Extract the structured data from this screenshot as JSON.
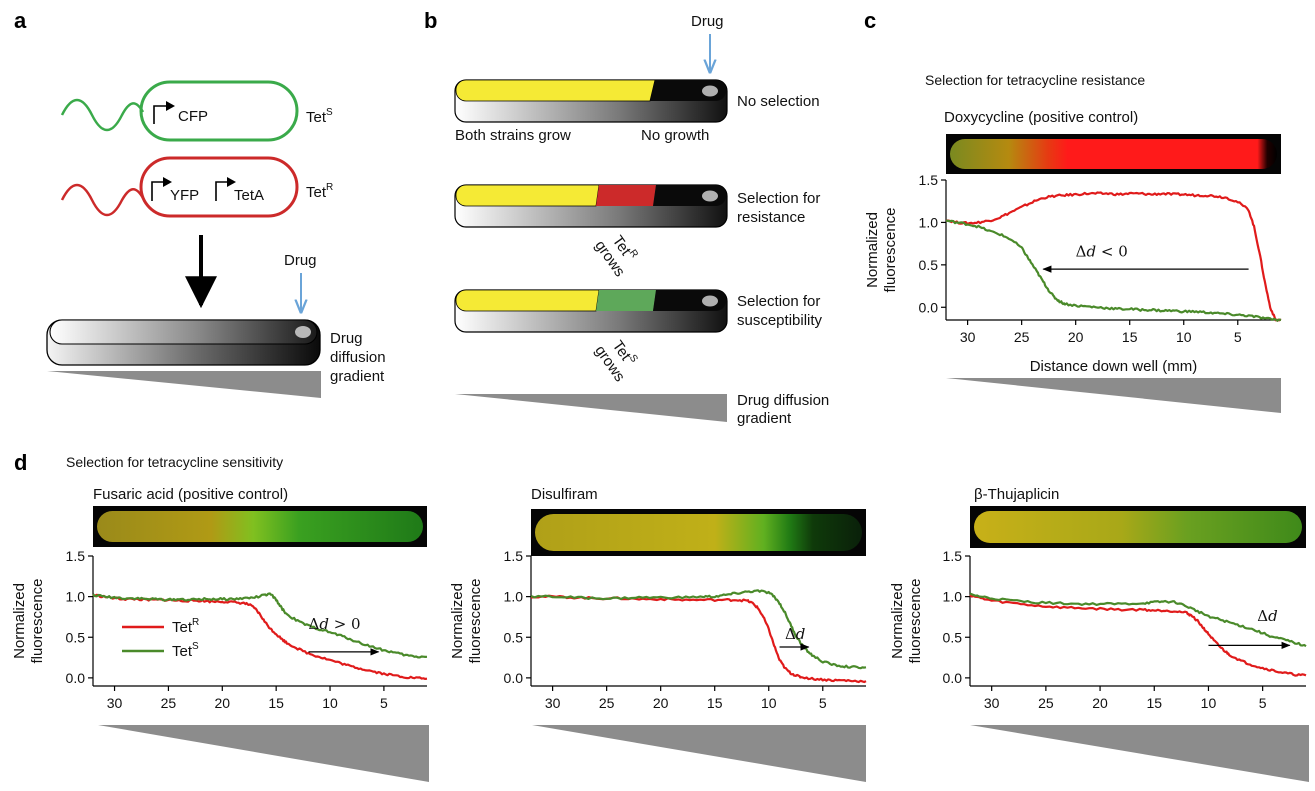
{
  "panel_labels": {
    "a": "a",
    "b": "b",
    "c": "c",
    "d": "d"
  },
  "colors": {
    "red": "#e01b1b",
    "green": "#4a8a2a",
    "yellow": "#f5ea35",
    "blue_drug_arrow": "#6aa4d8",
    "wedge": "#8c8c8c"
  },
  "panel_a": {
    "cfp_label": "CFP",
    "tets_label": "Tet",
    "tets_sup": "S",
    "yfp_label": "YFP",
    "teta_label": "TetA",
    "tetr_label": "Tet",
    "tetr_sup": "R",
    "drug_label": "Drug",
    "gradient_label_1": "Drug",
    "gradient_label_2": "diffusion",
    "gradient_label_3": "gradient"
  },
  "panel_b": {
    "drug_label": "Drug",
    "row1_label": "No selection",
    "both_grow": "Both strains grow",
    "no_growth": "No growth",
    "row2_label_1": "Selection for",
    "row2_label_2": "resistance",
    "row2_grows_1": "Tet",
    "row2_grows_sup": "R",
    "row2_grows_2": "grows",
    "row3_label_1": "Selection for",
    "row3_label_2": "susceptibility",
    "row3_grows_1": "Tet",
    "row3_grows_sup": "S",
    "row3_grows_2": "grows",
    "gradient_label_1": "Drug diffusion",
    "gradient_label_2": "gradient"
  },
  "panel_c": {
    "header": "Selection for tetracycline resistance",
    "title": "Doxycycline (positive control)"
  },
  "panel_d": {
    "header": "Selection for tetracycline sensitivity",
    "legend_tetr": "Tet",
    "legend_tetr_sup": "R",
    "legend_tets": "Tet",
    "legend_tets_sup": "S"
  },
  "chart_data": [
    {
      "id": "c",
      "type": "line",
      "title": "Doxycycline (positive control)",
      "xlabel": "Distance down well (mm)",
      "ylabel": "Normalized fluorescence",
      "xlim": [
        32,
        1
      ],
      "x_reversed": true,
      "ylim": [
        -0.15,
        1.5
      ],
      "xticks": [
        30,
        25,
        20,
        15,
        10,
        5
      ],
      "yticks": [
        0.0,
        0.5,
        1.0,
        1.5
      ],
      "ytick_labels": [
        "0.0",
        "0.5",
        "1.0",
        "1.5"
      ],
      "strip": [
        [
          0,
          "#7a8a20"
        ],
        [
          0.18,
          "#b58a10"
        ],
        [
          0.3,
          "#e63a12"
        ],
        [
          0.36,
          "#ff1a1a"
        ],
        [
          0.94,
          "#ff1a1a"
        ],
        [
          0.97,
          "#200000"
        ],
        [
          1,
          "#000000"
        ]
      ],
      "annotation": {
        "text_delta": "Δ",
        "text_d": "d",
        "text_rest": " < 0",
        "arrow_x_from": 4,
        "arrow_x_to": 23,
        "arrow_y": 0.45,
        "text_x": 20,
        "text_y": 0.6
      },
      "series": [
        {
          "name": "Tet R",
          "color": "#e01b1b",
          "x": [
            32,
            31,
            30,
            29,
            28,
            27,
            26,
            25,
            24,
            23,
            22,
            21,
            20,
            19,
            18,
            17,
            16,
            15,
            14,
            13,
            12,
            11,
            10,
            9,
            8,
            7,
            6,
            5,
            4,
            3.5,
            3,
            2.5,
            2,
            1.5,
            1
          ],
          "y": [
            1.03,
            1.0,
            0.99,
            1.0,
            1.02,
            1.06,
            1.12,
            1.18,
            1.24,
            1.29,
            1.31,
            1.32,
            1.33,
            1.34,
            1.34,
            1.34,
            1.33,
            1.34,
            1.34,
            1.33,
            1.34,
            1.33,
            1.33,
            1.32,
            1.32,
            1.31,
            1.29,
            1.24,
            1.15,
            0.95,
            0.65,
            0.3,
            0.0,
            -0.15,
            -0.15
          ]
        },
        {
          "name": "Tet S",
          "color": "#4a8a2a",
          "x": [
            32,
            31,
            30,
            29,
            28,
            27,
            26,
            25,
            24.5,
            24,
            23.5,
            23,
            22.5,
            22,
            21.5,
            21,
            20,
            19,
            18,
            17,
            16,
            15,
            14,
            13,
            12,
            11,
            10,
            9,
            8,
            7,
            6,
            5,
            4,
            3,
            2,
            1
          ],
          "y": [
            1.02,
            1.0,
            0.98,
            0.95,
            0.9,
            0.86,
            0.8,
            0.7,
            0.6,
            0.5,
            0.4,
            0.3,
            0.2,
            0.12,
            0.07,
            0.04,
            0.02,
            0.01,
            0.0,
            -0.01,
            -0.02,
            -0.02,
            -0.03,
            -0.03,
            -0.04,
            -0.04,
            -0.05,
            -0.05,
            -0.06,
            -0.07,
            -0.08,
            -0.09,
            -0.1,
            -0.12,
            -0.14,
            -0.15
          ]
        }
      ]
    },
    {
      "id": "d1",
      "type": "line",
      "title": "Fusaric acid (positive control)",
      "xlabel": "Distance down well (mm)",
      "ylabel": "Normalized fluorescence",
      "xlim": [
        32,
        1
      ],
      "x_reversed": true,
      "ylim": [
        -0.1,
        1.5
      ],
      "xticks": [
        30,
        25,
        20,
        15,
        10,
        5
      ],
      "yticks": [
        0.0,
        0.5,
        1.0,
        1.5
      ],
      "ytick_labels": [
        "0.0",
        "0.5",
        "1.0",
        "1.5"
      ],
      "strip": [
        [
          0,
          "#9a8a1a"
        ],
        [
          0.35,
          "#b09a15"
        ],
        [
          0.48,
          "#80c020"
        ],
        [
          0.62,
          "#3aa020"
        ],
        [
          1,
          "#1f7a18"
        ]
      ],
      "annotation": {
        "text_delta": "Δ",
        "text_d": "d",
        "text_rest": " > 0",
        "arrow_x_from": 12,
        "arrow_x_to": 5.5,
        "arrow_y": 0.32,
        "text_x": 12,
        "text_y": 0.6
      },
      "series": [
        {
          "name": "Tet R",
          "color": "#e01b1b",
          "x": [
            32,
            31,
            30,
            29,
            28,
            27,
            26,
            25,
            24,
            23,
            22,
            21,
            20,
            19,
            18,
            17.5,
            17,
            16.5,
            16,
            15.5,
            15,
            14.5,
            14,
            13,
            12,
            11,
            10,
            9,
            8,
            7,
            6,
            5,
            4,
            3,
            2,
            1
          ],
          "y": [
            1.02,
            1.0,
            0.98,
            0.97,
            0.97,
            0.96,
            0.96,
            0.96,
            0.95,
            0.95,
            0.95,
            0.94,
            0.94,
            0.93,
            0.92,
            0.9,
            0.86,
            0.78,
            0.68,
            0.6,
            0.54,
            0.48,
            0.43,
            0.36,
            0.3,
            0.26,
            0.22,
            0.18,
            0.14,
            0.11,
            0.08,
            0.05,
            0.03,
            0.01,
            0.0,
            -0.01
          ]
        },
        {
          "name": "Tet S",
          "color": "#4a8a2a",
          "x": [
            32,
            31,
            30,
            29,
            28,
            27,
            26,
            25,
            24,
            23,
            22,
            21,
            20,
            19,
            18,
            17,
            16,
            15.5,
            15,
            14.5,
            14,
            13,
            12,
            11,
            10,
            9,
            8,
            7,
            6,
            5,
            4,
            3,
            2,
            1
          ],
          "y": [
            1.02,
            1.0,
            0.99,
            0.98,
            0.98,
            0.97,
            0.97,
            0.96,
            0.97,
            0.96,
            0.97,
            0.97,
            0.97,
            0.97,
            0.98,
            0.99,
            1.02,
            1.03,
            0.96,
            0.86,
            0.78,
            0.7,
            0.64,
            0.6,
            0.56,
            0.52,
            0.47,
            0.42,
            0.38,
            0.34,
            0.31,
            0.28,
            0.26,
            0.26
          ]
        }
      ]
    },
    {
      "id": "d2",
      "type": "line",
      "title": "Disulfiram",
      "xlabel": "Distance down well (mm)",
      "ylabel": "Normalized fluorescence",
      "xlim": [
        32,
        1
      ],
      "x_reversed": true,
      "ylim": [
        -0.1,
        1.5
      ],
      "xticks": [
        30,
        25,
        20,
        15,
        10,
        5
      ],
      "yticks": [
        0.0,
        0.5,
        1.0,
        1.5
      ],
      "ytick_labels": [
        "0.0",
        "0.5",
        "1.0",
        "1.5"
      ],
      "strip": [
        [
          0,
          "#b0a018"
        ],
        [
          0.55,
          "#c0b018"
        ],
        [
          0.7,
          "#60b020"
        ],
        [
          0.78,
          "#207a14"
        ],
        [
          0.85,
          "#0f3a0a"
        ],
        [
          1,
          "#0a200a"
        ]
      ],
      "annotation": {
        "text_delta": "Δ",
        "text_d": "d",
        "text_rest": "",
        "arrow_x_from": 9,
        "arrow_x_to": 6.3,
        "arrow_y": 0.38,
        "text_x": 8.5,
        "text_y": 0.48
      },
      "series": [
        {
          "name": "Tet R",
          "color": "#e01b1b",
          "x": [
            32,
            30,
            28,
            26,
            24,
            22,
            20,
            18,
            16,
            14,
            13,
            12,
            11.5,
            11,
            10.5,
            10,
            9.5,
            9,
            8.5,
            8,
            7.5,
            7,
            6,
            5,
            4,
            3,
            2,
            1
          ],
          "y": [
            1.0,
            1.0,
            0.99,
            0.98,
            0.98,
            0.97,
            0.97,
            0.96,
            0.96,
            0.96,
            0.96,
            0.95,
            0.92,
            0.86,
            0.75,
            0.6,
            0.4,
            0.22,
            0.12,
            0.06,
            0.03,
            0.01,
            -0.01,
            -0.02,
            -0.03,
            -0.03,
            -0.04,
            -0.04
          ]
        },
        {
          "name": "Tet S",
          "color": "#4a8a2a",
          "x": [
            32,
            30,
            28,
            26,
            24,
            22,
            20,
            18,
            16,
            15,
            14,
            13,
            12,
            11,
            10,
            9.5,
            9,
            8.5,
            8,
            7.5,
            7,
            6.5,
            6,
            5,
            4,
            3,
            2,
            1
          ],
          "y": [
            1.0,
            1.0,
            0.99,
            0.98,
            0.98,
            0.99,
            0.99,
            0.99,
            1.0,
            1.0,
            1.02,
            1.04,
            1.06,
            1.07,
            1.05,
            1.0,
            0.92,
            0.8,
            0.66,
            0.52,
            0.42,
            0.34,
            0.28,
            0.2,
            0.16,
            0.14,
            0.13,
            0.13
          ]
        }
      ]
    },
    {
      "id": "d3",
      "type": "line",
      "title": "β-Thujaplicin",
      "xlabel": "Distance down well (mm)",
      "ylabel": "Normalized fluorescence",
      "xlim": [
        32,
        1
      ],
      "x_reversed": true,
      "ylim": [
        -0.1,
        1.5
      ],
      "xticks": [
        30,
        25,
        20,
        15,
        10,
        5
      ],
      "yticks": [
        0.0,
        0.5,
        1.0,
        1.5
      ],
      "ytick_labels": [
        "0.0",
        "0.5",
        "1.0",
        "1.5"
      ],
      "strip": [
        [
          0,
          "#c8b018"
        ],
        [
          0.45,
          "#a8a818"
        ],
        [
          0.65,
          "#6aa020"
        ],
        [
          1,
          "#3f8a1a"
        ]
      ],
      "annotation": {
        "text_delta": "Δ",
        "text_d": "d",
        "text_rest": "",
        "arrow_x_from": 10,
        "arrow_x_to": 2.5,
        "arrow_y": 0.4,
        "text_x": 5.5,
        "text_y": 0.7
      },
      "series": [
        {
          "name": "Tet R",
          "color": "#e01b1b",
          "x": [
            32,
            31,
            30,
            28,
            26,
            24,
            22,
            20,
            18,
            16,
            15,
            14,
            13,
            12,
            11.5,
            11,
            10.5,
            10,
            9.5,
            9,
            8.5,
            8,
            7,
            6,
            5,
            4,
            3,
            2,
            1
          ],
          "y": [
            1.02,
            0.98,
            0.95,
            0.92,
            0.89,
            0.87,
            0.86,
            0.85,
            0.84,
            0.84,
            0.83,
            0.83,
            0.82,
            0.8,
            0.76,
            0.7,
            0.62,
            0.54,
            0.46,
            0.39,
            0.33,
            0.28,
            0.21,
            0.16,
            0.12,
            0.09,
            0.06,
            0.04,
            0.03
          ]
        },
        {
          "name": "Tet S",
          "color": "#4a8a2a",
          "x": [
            32,
            31,
            30,
            28,
            26,
            24,
            22,
            20,
            18,
            16,
            15,
            14,
            13,
            12,
            11,
            10,
            9,
            8,
            7,
            6,
            5,
            4,
            3,
            2,
            1
          ],
          "y": [
            1.03,
            1.0,
            0.98,
            0.95,
            0.93,
            0.92,
            0.91,
            0.91,
            0.91,
            0.92,
            0.93,
            0.94,
            0.93,
            0.88,
            0.82,
            0.76,
            0.72,
            0.68,
            0.64,
            0.6,
            0.55,
            0.5,
            0.47,
            0.43,
            0.39
          ]
        }
      ]
    }
  ]
}
